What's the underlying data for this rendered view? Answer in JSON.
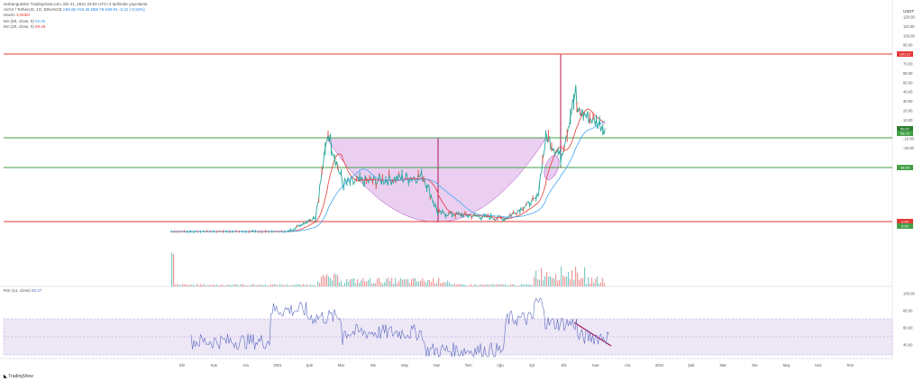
{
  "header": {
    "author_line": "serbangutekin TradingView.com, Eki 21, 2021 23:00 UTC+3 tarihinde yayınlandı",
    "symbol_line": "AVAX / TetherUS, 1G, BINANCE",
    "ohlc": "A59.06  Y64.35  D58.78  K59.91  -0.31 (-0.52%)",
    "volume_label": "Hacim",
    "volume_value": "3.063M",
    "ma50_label": "MA (50, close, 0)",
    "ma50_value": "58.96",
    "ma20_label": "MA (20, close, 0)",
    "ma20_value": "59.48",
    "rsi_label": "RSI (14, close)",
    "rsi_value": "55.27"
  },
  "currency": "USDT",
  "price_axis": [
    "120.00",
    "110.00",
    "100.00",
    "90.00",
    "80.00",
    "70.00",
    "60.00",
    "50.00",
    "40.00",
    "30.00",
    "20.00",
    "10.00",
    "0.00",
    "-10.00",
    "-20.00"
  ],
  "rsi_axis": [
    "100.00",
    "80.00",
    "60.00",
    "40.00"
  ],
  "level_tags": [
    {
      "text": "100.12",
      "color": "#e53935"
    },
    {
      "text": "59.97",
      "color": "#2e7d32"
    },
    {
      "text": "58.24",
      "color": "#43a047"
    },
    {
      "text": "38.99",
      "color": "#43a047"
    },
    {
      "text": "9.40",
      "color": "#e53935"
    },
    {
      "text": "5.00",
      "color": "#43a047"
    }
  ],
  "time_axis": [
    "Eki",
    "Kas",
    "Ara",
    "2021",
    "Şub",
    "Mar",
    "Nis",
    "May",
    "Haz",
    "Tem",
    "Ağu",
    "Eyl",
    "Eki",
    "Kas",
    "Ara",
    "2022",
    "Şub",
    "Mar",
    "Nis",
    "May",
    "Haz",
    "Tem"
  ],
  "footer_brand": "TradingView",
  "colors": {
    "red_level": "#e53935",
    "green_level": "#43a047",
    "cup_fill": "#d9a8e6",
    "rsi_band": "#ede7f6",
    "rsi_line": "#5c6bc0"
  },
  "chart_data": {
    "type": "line",
    "title": "AVAX / TetherUS, 1G, BINANCE",
    "series": [
      {
        "name": "AVAX / TetherUS",
        "x": [
          "Eki",
          "Kas",
          "Ara",
          "2021",
          "Şub",
          "Mar",
          "Nis",
          "May",
          "Haz",
          "Tem",
          "Ağu",
          "Eyl",
          "Eki"
        ],
        "values": [
          3,
          3,
          3,
          4,
          40,
          28,
          30,
          30,
          14,
          11,
          13,
          45,
          59.91
        ]
      },
      {
        "name": "MA (50, close, 0)",
        "values": [
          3,
          3,
          3,
          3,
          15,
          30,
          28,
          30,
          25,
          12,
          12,
          25,
          58.96
        ]
      },
      {
        "name": "MA (20, close, 0)",
        "values": [
          3,
          3,
          3,
          4,
          38,
          27,
          29,
          30,
          16,
          11,
          15,
          40,
          59.48
        ]
      }
    ],
    "levels": [
      100.12,
      58.24,
      38.99,
      9.4
    ],
    "ylim": [
      -25,
      125
    ],
    "rsi": {
      "name": "RSI (14, close)",
      "last": 55.27,
      "bands": [
        30,
        70
      ]
    }
  }
}
